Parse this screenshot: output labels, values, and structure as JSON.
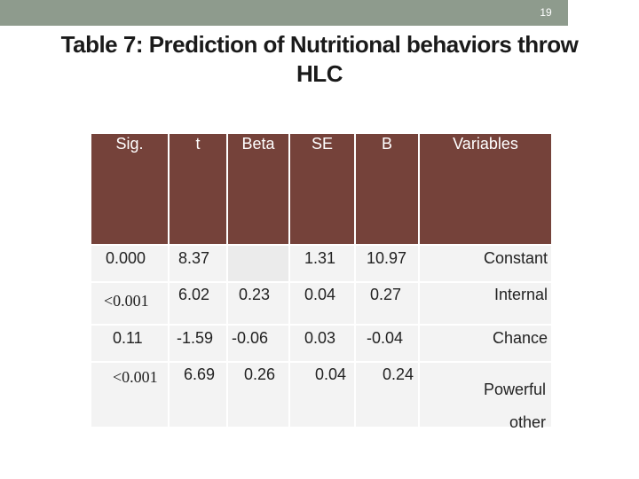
{
  "page_number": "19",
  "title_line1": "Table 7: Prediction of Nutritional behaviors throw",
  "title_line2": "HLC",
  "headers": [
    "Sig.",
    "t",
    "Beta",
    "SE",
    "B",
    "Variables"
  ],
  "rows": [
    {
      "sig": "0.000",
      "t": "8.37",
      "beta": "",
      "se": "1.31",
      "b": "10.97",
      "variable": "Constant"
    },
    {
      "sig": "<0.001",
      "t": "6.02",
      "beta": "0.23",
      "se": "0.04",
      "b": "0.27",
      "variable": "Internal"
    },
    {
      "sig": "0.11",
      "t": "-1.59",
      "beta": "-0.06",
      "se": "0.03",
      "b": "-0.04",
      "variable": "Chance"
    },
    {
      "sig": "<0.001",
      "t": "6.69",
      "beta": "0.26",
      "se": "0.04",
      "b": "0.24",
      "variable": "Powerful other"
    }
  ],
  "colors": {
    "header_bg": "#75423a",
    "top_bar": "#8e9b8d",
    "cell_bg": "#f3f3f3"
  }
}
